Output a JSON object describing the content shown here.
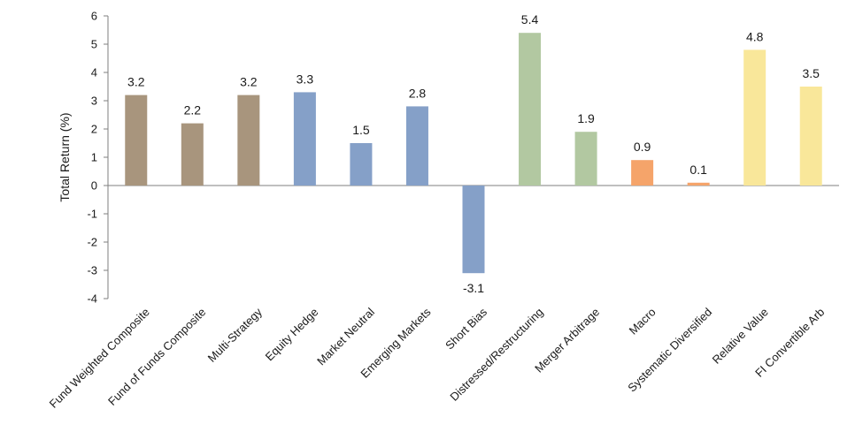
{
  "chart_data": {
    "type": "bar",
    "title": "",
    "xlabel": "",
    "ylabel": "Total Return (%)",
    "ylim": [
      -4,
      6
    ],
    "yticks": [
      6,
      5,
      4,
      3,
      2,
      1,
      0,
      -1,
      -2,
      -3,
      -4
    ],
    "grid": false,
    "legend": "none",
    "categories": [
      "Fund Weighted Composite",
      "Fund of Funds Composite",
      "Multi-Strategy",
      "Equity Hedge",
      "Market Neutral",
      "Emerging Markets",
      "Short Bias",
      "Distressed/Restructuring",
      "Merger Arbitrage",
      "Macro",
      "Systematic Diversified",
      "Relative Value",
      "FI Convertible Arb"
    ],
    "values": [
      3.2,
      2.2,
      3.2,
      3.3,
      1.5,
      2.8,
      -3.1,
      5.4,
      1.9,
      0.9,
      0.1,
      4.8,
      3.5
    ],
    "bar_colors": [
      "#a8957d",
      "#a8957d",
      "#a8957d",
      "#85a0c8",
      "#85a0c8",
      "#85a0c8",
      "#85a0c8",
      "#b2c8a1",
      "#b2c8a1",
      "#f5a46a",
      "#f5a46a",
      "#f9e79a",
      "#f9e79a"
    ]
  }
}
